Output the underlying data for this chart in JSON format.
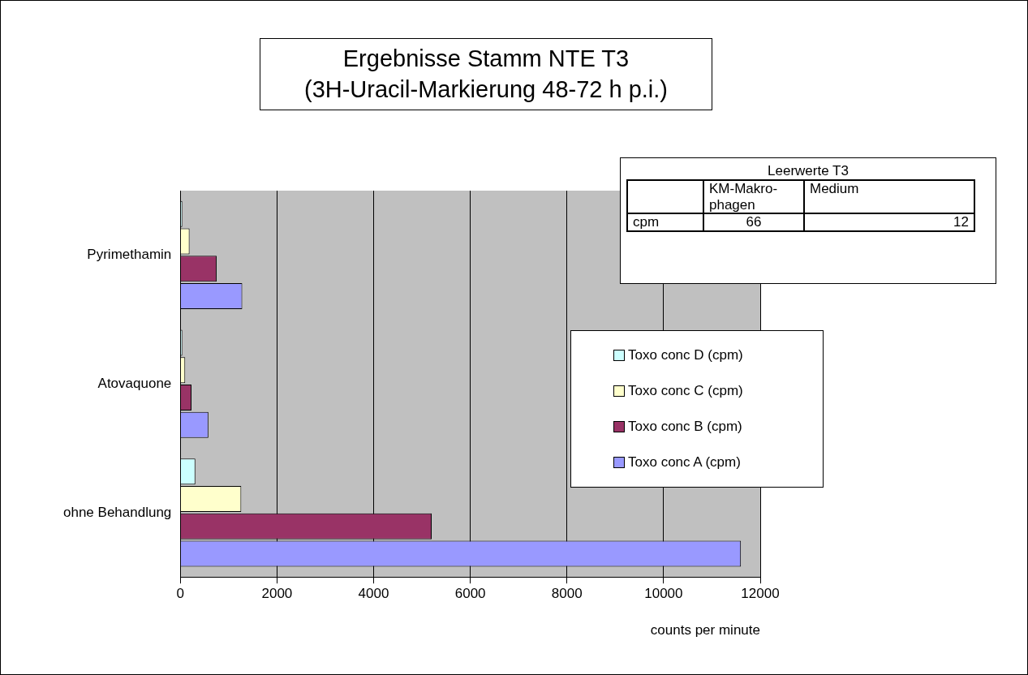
{
  "chart_data": {
    "type": "bar",
    "orientation": "horizontal",
    "title": "Ergebnisse Stamm NTE T3",
    "subtitle": "(3H-Uracil-Markierung 48-72 h p.i.)",
    "xlabel": "counts per minute",
    "categories": [
      "Pyrimethamin",
      "Atovaquone",
      "ohne Behandlung"
    ],
    "series": [
      {
        "name": "Toxo conc D (cpm)",
        "color": "#ccffff",
        "values": [
          40,
          40,
          310
        ]
      },
      {
        "name": "Toxo conc C (cpm)",
        "color": "#ffffcc",
        "values": [
          190,
          100,
          1260
        ]
      },
      {
        "name": "Toxo conc B (cpm)",
        "color": "#993366",
        "values": [
          750,
          230,
          5200
        ]
      },
      {
        "name": "Toxo conc A (cpm)",
        "color": "#9999ff",
        "values": [
          1280,
          580,
          11600
        ]
      }
    ],
    "xlim": [
      0,
      12000
    ],
    "xticks": [
      0,
      2000,
      4000,
      6000,
      8000,
      10000,
      12000
    ],
    "grid": "x",
    "legend": "right",
    "annotations": [
      "Leerwerte T3",
      "KM-Makro-phagen",
      "Medium",
      "cpm",
      "66",
      "12"
    ]
  }
}
